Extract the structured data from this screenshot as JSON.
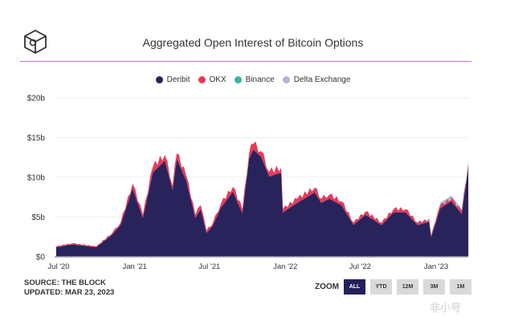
{
  "header": {
    "title": "Aggregated Open Interest of Bitcoin Options",
    "logo": "The Block cube logo"
  },
  "footer": {
    "source": "SOURCE: THE BLOCK",
    "updated": "UPDATED: MAR 23, 2023"
  },
  "zoom": {
    "label": "ZOOM",
    "buttons": [
      "ALL",
      "YTD",
      "12M",
      "3M",
      "1M"
    ],
    "active": "ALL"
  },
  "watermark": "非小号",
  "colors": {
    "Deribit": "#29235c",
    "OKX": "#e8395a",
    "Binance": "#36b8a4",
    "Delta Exchange": "#b9aee0"
  },
  "chart_data": {
    "type": "area",
    "stacked": true,
    "title": "Aggregated Open Interest of Bitcoin Options",
    "xlabel": "",
    "ylabel": "",
    "ylim": [
      0,
      20
    ],
    "yunit": "billion USD",
    "yticks": [
      "$0",
      "$5b",
      "$10b",
      "$15b",
      "$20b"
    ],
    "xticks": [
      {
        "date": "2020-07-01",
        "label": "Jul '20"
      },
      {
        "date": "2021-01-01",
        "label": "Jan '21"
      },
      {
        "date": "2021-07-01",
        "label": "Jul '21"
      },
      {
        "date": "2022-01-01",
        "label": "Jan '22"
      },
      {
        "date": "2022-07-01",
        "label": "Jul '22"
      },
      {
        "date": "2023-01-01",
        "label": "Jan '23"
      }
    ],
    "grid": true,
    "legend_position": "top",
    "x": [
      "2020-06-25",
      "2020-08-03",
      "2020-09-30",
      "2020-11-08",
      "2020-11-28",
      "2020-12-27",
      "2021-01-21",
      "2021-02-14",
      "2021-03-15",
      "2021-04-03",
      "2021-04-13",
      "2021-05-06",
      "2021-05-28",
      "2021-06-10",
      "2021-06-24",
      "2021-07-09",
      "2021-07-29",
      "2021-08-27",
      "2021-09-19",
      "2021-10-05",
      "2021-10-15",
      "2021-11-03",
      "2021-11-23",
      "2021-12-22",
      "2021-12-26",
      "2022-01-30",
      "2022-03-13",
      "2022-03-29",
      "2022-04-17",
      "2022-05-17",
      "2022-06-15",
      "2022-07-14",
      "2022-08-22",
      "2022-09-20",
      "2022-10-19",
      "2022-11-17",
      "2022-12-15",
      "2022-12-20",
      "2023-01-11",
      "2023-02-07",
      "2023-03-04",
      "2023-03-20"
    ],
    "series": [
      {
        "name": "Deribit",
        "values": [
          1.2,
          1.55,
          1.2,
          2.8,
          4.0,
          8.6,
          4.9,
          10.6,
          12.1,
          8.4,
          12.3,
          9.6,
          4.9,
          6.0,
          3.0,
          3.9,
          6.2,
          8.2,
          5.5,
          12.3,
          13.5,
          12.6,
          10.1,
          10.6,
          5.6,
          6.8,
          8.1,
          6.8,
          7.3,
          6.5,
          4.0,
          5.3,
          4.0,
          5.6,
          5.6,
          4.0,
          4.4,
          2.5,
          6.1,
          7.0,
          5.4,
          11.3
        ]
      },
      {
        "name": "OKX",
        "values": [
          0.1,
          0.15,
          0.1,
          0.2,
          0.3,
          0.6,
          0.4,
          0.7,
          0.7,
          0.6,
          0.7,
          0.6,
          0.4,
          0.5,
          0.3,
          0.3,
          0.5,
          0.6,
          0.5,
          0.7,
          0.7,
          0.7,
          0.6,
          0.6,
          0.4,
          0.5,
          0.6,
          0.5,
          0.5,
          0.5,
          0.3,
          0.4,
          0.3,
          0.4,
          0.4,
          0.3,
          0.3,
          0.2,
          0.4,
          0.4,
          0.4,
          0.5
        ]
      },
      {
        "name": "Binance",
        "values": [
          0,
          0,
          0,
          0,
          0,
          0,
          0,
          0,
          0,
          0,
          0,
          0,
          0,
          0,
          0,
          0,
          0,
          0,
          0,
          0,
          0,
          0,
          0,
          0,
          0,
          0,
          0,
          0,
          0,
          0,
          0,
          0,
          0,
          0,
          0,
          0,
          0.05,
          0.05,
          0.1,
          0.1,
          0.1,
          0.1
        ]
      },
      {
        "name": "Delta Exchange",
        "values": [
          0,
          0,
          0,
          0,
          0,
          0,
          0,
          0,
          0,
          0,
          0,
          0,
          0,
          0,
          0,
          0,
          0,
          0,
          0,
          0,
          0,
          0,
          0,
          0,
          0,
          0,
          0,
          0,
          0,
          0,
          0,
          0,
          0,
          0,
          0,
          0,
          0.05,
          0.05,
          0.2,
          0.2,
          0.1,
          0.1
        ]
      }
    ]
  }
}
